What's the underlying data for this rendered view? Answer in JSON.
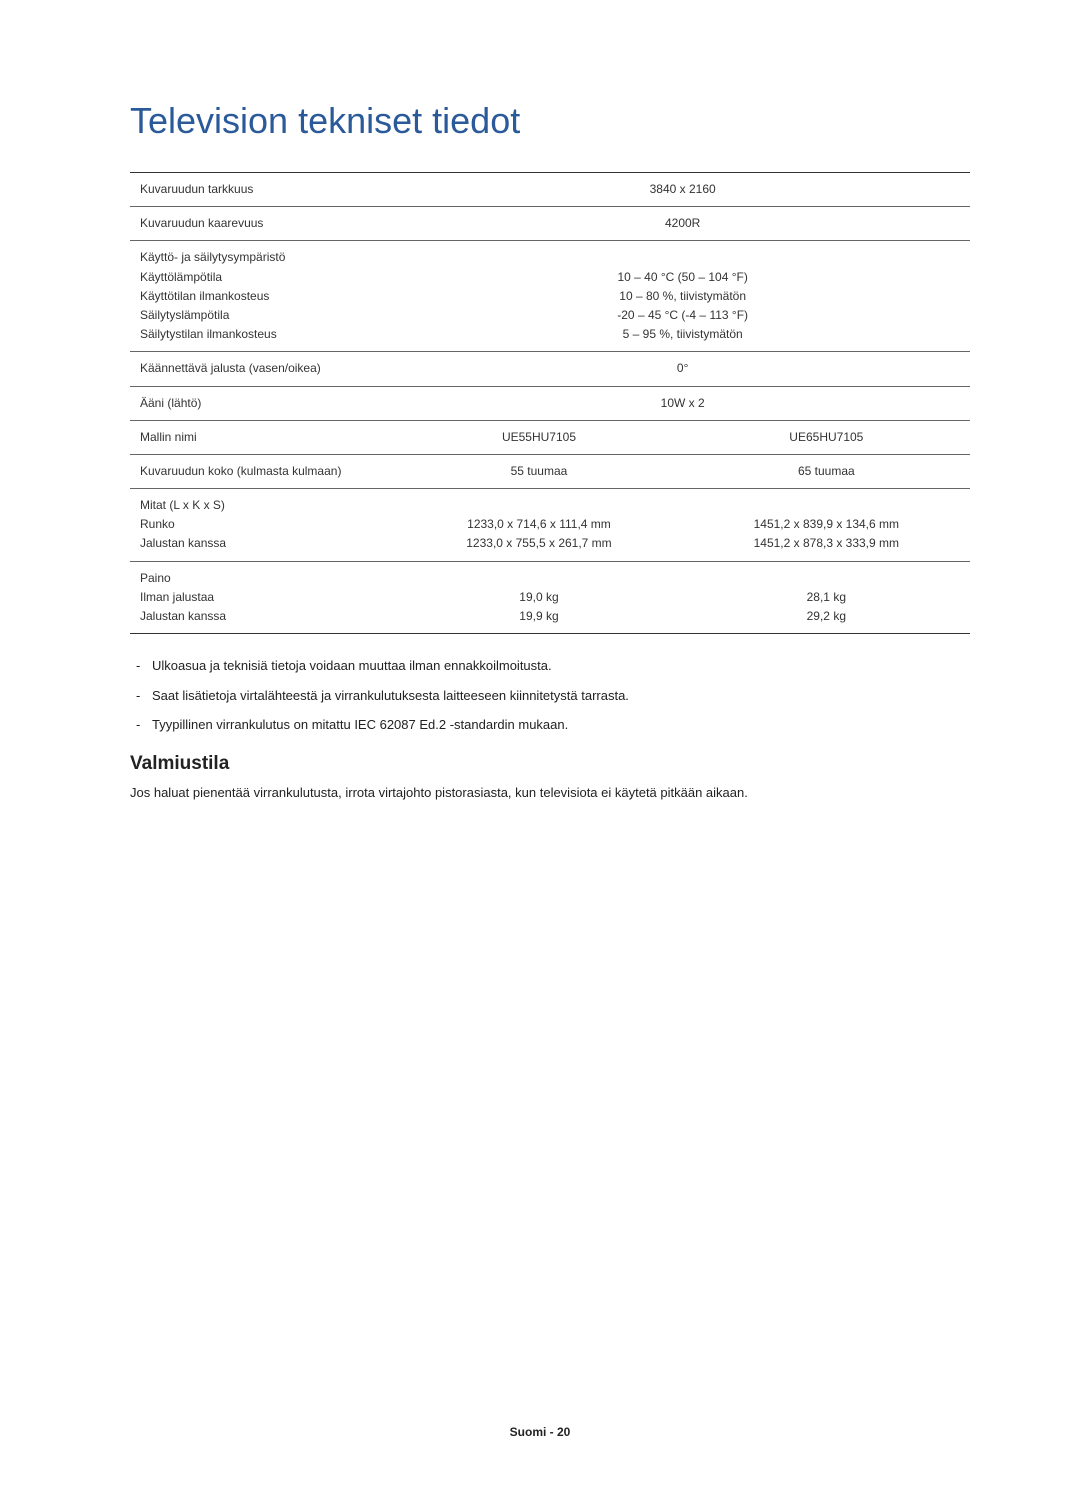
{
  "title": "Television tekniset tiedot",
  "table": {
    "rows": [
      {
        "label": "Kuvaruudun tarkkuus",
        "full": "3840 x 2160"
      },
      {
        "label": "Kuvaruudun kaarevuus",
        "full": "4200R"
      },
      {
        "label_lines": [
          "Käyttö- ja säilytysympäristö",
          "Käyttölämpötila",
          "Käyttötilan ilmankosteus",
          "Säilytyslämpötila",
          "Säilytystilan ilmankosteus"
        ],
        "full_lines": [
          "",
          "10 – 40 °C (50 – 104 °F)",
          "10 – 80 %, tiivistymätön",
          "-20 – 45 °C (-4 – 113 °F)",
          "5 – 95 %, tiivistymätön"
        ]
      },
      {
        "label": "Käännettävä jalusta (vasen/oikea)",
        "full": "0°"
      },
      {
        "label": "Ääni (lähtö)",
        "full": "10W x 2"
      },
      {
        "label": "Mallin nimi",
        "left": "UE55HU7105",
        "right": "UE65HU7105"
      },
      {
        "label": "Kuvaruudun koko (kulmasta kulmaan)",
        "left": "55 tuumaa",
        "right": "65 tuumaa"
      },
      {
        "label_lines": [
          "Mitat (L x K x S)",
          "Runko",
          "Jalustan kanssa"
        ],
        "left_lines": [
          "",
          "1233,0 x 714,6 x 111,4 mm",
          "1233,0 x 755,5 x 261,7 mm"
        ],
        "right_lines": [
          "",
          "1451,2 x 839,9 x 134,6 mm",
          "1451,2 x 878,3 x 333,9 mm"
        ]
      },
      {
        "label_lines": [
          "Paino",
          "Ilman jalustaa",
          "Jalustan kanssa"
        ],
        "left_lines": [
          "",
          "19,0 kg",
          "19,9 kg"
        ],
        "right_lines": [
          "",
          "28,1 kg",
          "29,2 kg"
        ]
      }
    ]
  },
  "notes": [
    "Ulkoasua ja teknisiä tietoja voidaan muuttaa ilman ennakkoilmoitusta.",
    "Saat lisätietoja virtalähteestä ja virrankulutuksesta laitteeseen kiinnitetystä tarrasta.",
    "Tyypillinen virrankulutus on mitattu IEC 62087 Ed.2 -standardin mukaan."
  ],
  "standby": {
    "heading": "Valmiustila",
    "text": "Jos haluat pienentää virrankulutusta, irrota virtajohto pistorasiasta, kun televisiota ei käytetä pitkään aikaan."
  },
  "footer": "Suomi - 20"
}
